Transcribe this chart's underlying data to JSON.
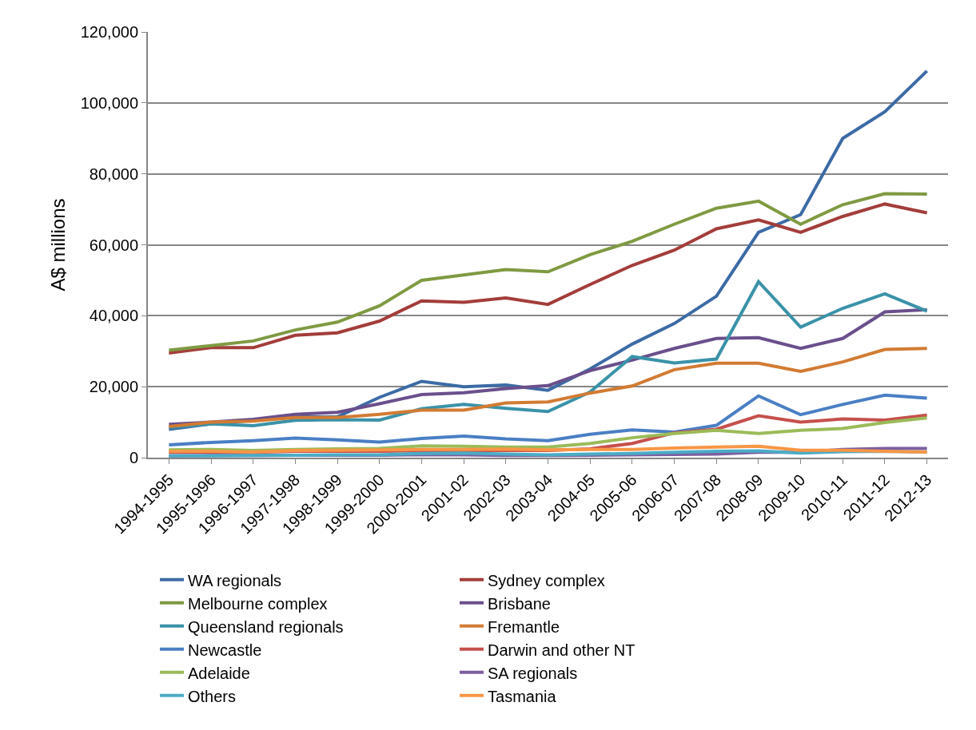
{
  "chart_data": {
    "type": "line",
    "ylabel": "A$ millions",
    "categories": [
      "1994-1995",
      "1995-1996",
      "1996-1997",
      "1997-1998",
      "1998-1999",
      "1999-2000",
      "2000-2001",
      "2001-02",
      "2002-03",
      "2003-04",
      "2004-05",
      "2005-06",
      "2006-07",
      "2007-08",
      "2008-09",
      "2009-10",
      "2010-11",
      "2011-12",
      "2012-13"
    ],
    "ylim": [
      0,
      120000
    ],
    "yticks": [
      {
        "value": 0,
        "label": "0"
      },
      {
        "value": 20000,
        "label": "20,000"
      },
      {
        "value": 40000,
        "label": "40,000"
      },
      {
        "value": 60000,
        "label": "60,000"
      },
      {
        "value": 80000,
        "label": "80,000"
      },
      {
        "value": 100000,
        "label": "100,000"
      },
      {
        "value": 120000,
        "label": "120,000"
      }
    ],
    "grid": "y",
    "legend": "bottom",
    "marker": "none",
    "line_style": "solid",
    "series": [
      {
        "name": "WA regionals",
        "color": "#3c6ba5",
        "values": [
          8000,
          9500,
          10500,
          11500,
          11500,
          17000,
          21500,
          20000,
          20500,
          19000,
          25000,
          32000,
          37800,
          45500,
          63500,
          68500,
          90000,
          97500,
          109000
        ]
      },
      {
        "name": "Sydney complex",
        "color": "#a33d3a",
        "values": [
          29500,
          31000,
          31000,
          34500,
          35200,
          38500,
          44200,
          43800,
          45000,
          43200,
          48800,
          54200,
          58500,
          64500,
          67000,
          63500,
          68000,
          71500,
          69000
        ]
      },
      {
        "name": "Melbourne complex",
        "color": "#7f9a42",
        "values": [
          30300,
          31600,
          32900,
          36000,
          38200,
          42800,
          50000,
          51500,
          53000,
          52400,
          57200,
          61000,
          65800,
          70300,
          72300,
          65800,
          71300,
          74400,
          74300
        ]
      },
      {
        "name": "Brisbane",
        "color": "#6a4f8c",
        "values": [
          9400,
          10000,
          10800,
          12200,
          12800,
          15200,
          17800,
          18300,
          19500,
          20300,
          24500,
          27500,
          30800,
          33600,
          33800,
          30800,
          33600,
          41100,
          41700
        ]
      },
      {
        "name": "Queensland regionals",
        "color": "#3a92a8",
        "values": [
          8500,
          9500,
          9000,
          10500,
          10700,
          10600,
          13800,
          15000,
          13900,
          13000,
          18500,
          28500,
          26700,
          27800,
          49600,
          36800,
          42100,
          46200,
          41300
        ]
      },
      {
        "name": "Fremantle",
        "color": "#d27b33",
        "values": [
          8800,
          10000,
          10300,
          11300,
          11300,
          12200,
          13400,
          13400,
          15400,
          15700,
          18200,
          20200,
          24800,
          26600,
          26600,
          24300,
          27000,
          30500,
          30800
        ]
      },
      {
        "name": "Newcastle",
        "color": "#4a7fc4",
        "values": [
          3600,
          4300,
          4800,
          5500,
          5000,
          4400,
          5400,
          6100,
          5300,
          4800,
          6600,
          7800,
          7200,
          9100,
          17400,
          12100,
          15000,
          17600,
          16800
        ]
      },
      {
        "name": "Darwin and other NT",
        "color": "#c6504c",
        "values": [
          1500,
          1500,
          1500,
          1800,
          1800,
          1800,
          2000,
          2000,
          2000,
          2000,
          2500,
          4000,
          7000,
          8000,
          11800,
          10000,
          10900,
          10600,
          12000
        ]
      },
      {
        "name": "Adelaide",
        "color": "#9bbb59",
        "values": [
          2200,
          2300,
          2000,
          2300,
          2500,
          2600,
          3300,
          3200,
          3000,
          3000,
          4000,
          5600,
          6800,
          7700,
          6800,
          7700,
          8200,
          9900,
          11200
        ]
      },
      {
        "name": "SA regionals",
        "color": "#7d5fa0",
        "values": [
          500,
          600,
          600,
          700,
          700,
          700,
          800,
          800,
          600,
          600,
          700,
          800,
          900,
          1000,
          1500,
          1500,
          2300,
          2600,
          2600
        ]
      },
      {
        "name": "Others",
        "color": "#4bacc6",
        "values": [
          500,
          500,
          600,
          700,
          800,
          800,
          1200,
          1300,
          1000,
          800,
          1000,
          1200,
          1500,
          1800,
          1900,
          1300,
          1700,
          1800,
          1600
        ]
      },
      {
        "name": "Tasmania",
        "color": "#f79646",
        "values": [
          1800,
          1800,
          1600,
          2000,
          2100,
          2200,
          2300,
          2300,
          2400,
          2200,
          2300,
          2300,
          2700,
          3000,
          3200,
          2100,
          2100,
          1800,
          1600
        ]
      }
    ]
  }
}
